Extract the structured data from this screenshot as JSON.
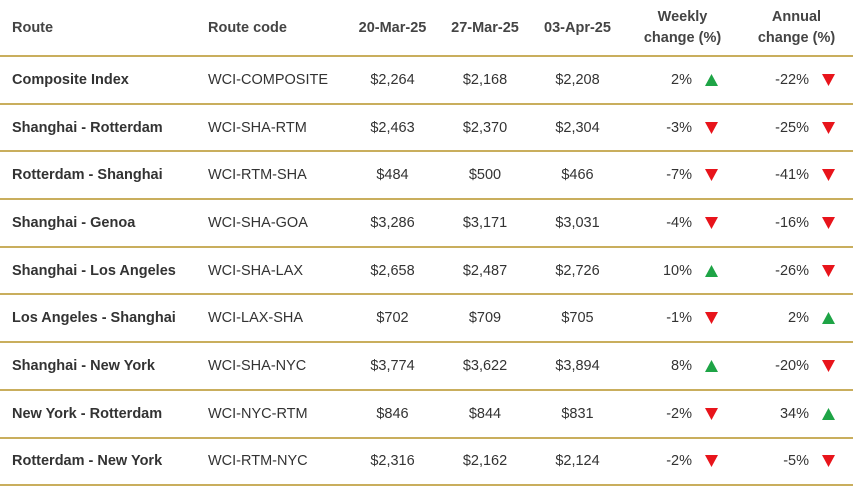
{
  "table": {
    "header": [
      "Route",
      "Route code",
      "20-Mar-25",
      "27-Mar-25",
      "03-Apr-25",
      "Weekly change (%)",
      "Annual change (%)"
    ],
    "rows": [
      [
        "Composite Index",
        "WCI-COMPOSITE",
        "$2,264",
        "$2,168",
        "$2,208",
        "2%",
        "-22%"
      ],
      [
        "Shanghai - Rotterdam",
        "WCI-SHA-RTM",
        "$2,463",
        "$2,370",
        "$2,304",
        "-3%",
        "-25%"
      ],
      [
        "Rotterdam - Shanghai",
        "WCI-RTM-SHA",
        "$484",
        "$500",
        "$466",
        "-7%",
        "-41%"
      ],
      [
        "Shanghai - Genoa",
        "WCI-SHA-GOA",
        "$3,286",
        "$3,171",
        "$3,031",
        "-4%",
        "-16%"
      ],
      [
        "Shanghai - Los Angeles",
        "WCI-SHA-LAX",
        "$2,658",
        "$2,487",
        "$2,726",
        "10%",
        "-26%"
      ],
      [
        "Los Angeles - Shanghai",
        "WCI-LAX-SHA",
        "$702",
        "$709",
        "$705",
        "-1%",
        "2%"
      ],
      [
        "Shanghai - New York",
        "WCI-SHA-NYC",
        "$3,774",
        "$3,622",
        "$3,894",
        "8%",
        "-20%"
      ],
      [
        "New York - Rotterdam",
        "WCI-NYC-RTM",
        "$846",
        "$844",
        "$831",
        "-2%",
        "34%"
      ],
      [
        "Rotterdam - New York",
        "WCI-RTM-NYC",
        "$2,316",
        "$2,162",
        "$2,124",
        "-2%",
        "-5%"
      ]
    ]
  }
}
